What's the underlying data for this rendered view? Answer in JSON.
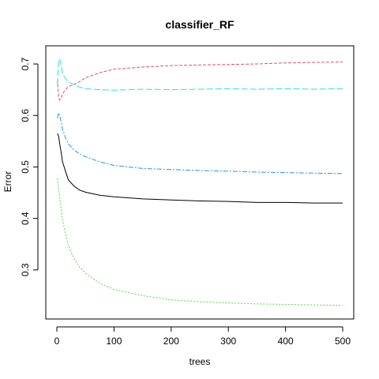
{
  "chart_data": {
    "type": "line",
    "title": "classifier_RF",
    "xlabel": "trees",
    "ylabel": "Error",
    "xlim": [
      0,
      500
    ],
    "ylim": [
      0.22,
      0.72
    ],
    "x_ticks": [
      0,
      100,
      200,
      300,
      400,
      500
    ],
    "y_ticks": [
      0.3,
      0.4,
      0.5,
      0.6,
      0.7
    ],
    "x_tick_labels": [
      "0",
      "100",
      "200",
      "300",
      "400",
      "500"
    ],
    "y_tick_labels": [
      "0.3",
      "0.4",
      "0.5",
      "0.6",
      "0.7"
    ],
    "grid": false,
    "legend": "none",
    "series": [
      {
        "color": "#000000",
        "dash": "solid",
        "x": [
          1,
          3,
          5,
          8,
          10,
          15,
          20,
          30,
          40,
          50,
          75,
          100,
          150,
          200,
          250,
          300,
          350,
          400,
          450,
          500
        ],
        "y": [
          0.565,
          0.56,
          0.545,
          0.525,
          0.51,
          0.492,
          0.475,
          0.463,
          0.455,
          0.451,
          0.445,
          0.442,
          0.438,
          0.436,
          0.434,
          0.433,
          0.431,
          0.431,
          0.43,
          0.43
        ]
      },
      {
        "color": "#DF536B",
        "dash": "4,2",
        "x": [
          1,
          3,
          5,
          8,
          10,
          15,
          20,
          30,
          40,
          50,
          75,
          100,
          150,
          200,
          250,
          300,
          350,
          400,
          450,
          500
        ],
        "y": [
          0.67,
          0.635,
          0.63,
          0.635,
          0.642,
          0.65,
          0.656,
          0.66,
          0.666,
          0.673,
          0.683,
          0.69,
          0.694,
          0.697,
          0.698,
          0.699,
          0.7,
          0.702,
          0.703,
          0.704
        ]
      },
      {
        "color": "#61D04F",
        "dash": "2,2",
        "x": [
          1,
          3,
          5,
          8,
          10,
          15,
          20,
          30,
          40,
          50,
          75,
          100,
          150,
          200,
          250,
          300,
          350,
          400,
          450,
          500
        ],
        "y": [
          0.478,
          0.46,
          0.44,
          0.415,
          0.398,
          0.37,
          0.348,
          0.322,
          0.305,
          0.294,
          0.274,
          0.262,
          0.25,
          0.242,
          0.238,
          0.236,
          0.234,
          0.233,
          0.232,
          0.231
        ]
      },
      {
        "color": "#2297E6",
        "dash": "6,2,2,2",
        "x": [
          1,
          3,
          5,
          8,
          10,
          15,
          20,
          30,
          40,
          50,
          75,
          100,
          150,
          200,
          250,
          300,
          350,
          400,
          450,
          500
        ],
        "y": [
          0.595,
          0.605,
          0.6,
          0.585,
          0.573,
          0.557,
          0.545,
          0.533,
          0.525,
          0.52,
          0.51,
          0.503,
          0.497,
          0.495,
          0.493,
          0.492,
          0.49,
          0.489,
          0.488,
          0.487
        ]
      },
      {
        "color": "#28E2E5",
        "dash": "8,3",
        "x": [
          1,
          3,
          5,
          8,
          10,
          15,
          20,
          30,
          40,
          50,
          75,
          100,
          150,
          200,
          250,
          300,
          350,
          400,
          450,
          500
        ],
        "y": [
          0.66,
          0.705,
          0.71,
          0.695,
          0.68,
          0.672,
          0.665,
          0.66,
          0.655,
          0.652,
          0.65,
          0.649,
          0.651,
          0.65,
          0.651,
          0.652,
          0.651,
          0.652,
          0.651,
          0.652
        ]
      }
    ]
  }
}
